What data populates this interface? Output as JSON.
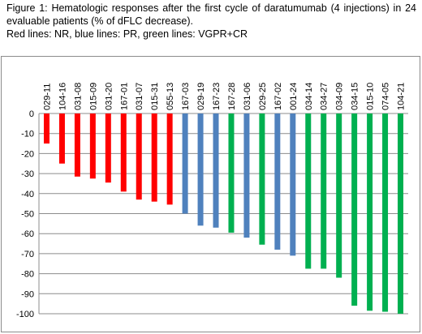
{
  "caption": {
    "line1": "Figure 1: Hematologic responses after the first cycle of daratumumab (4 injections) in 24 evaluable patients (% of dFLC decrease).",
    "line2": "Red lines: NR, blue lines: PR, green lines: VGPR+CR"
  },
  "colors": {
    "NR": "#ff0000",
    "PR": "#4f81bd",
    "VGPR+CR": "#00b050",
    "grid": "#8c8c8c"
  },
  "chart_data": {
    "type": "bar",
    "title": "",
    "xlabel": "",
    "ylabel": "",
    "ylim": [
      -100,
      0
    ],
    "yticks": [
      0,
      -10,
      -20,
      -30,
      -40,
      -50,
      -60,
      -70,
      -80,
      -90,
      -100
    ],
    "grid": "horizontal",
    "x_axis_position": "top",
    "categories": [
      "029-11",
      "104-16",
      "031-08",
      "015-09",
      "031-20",
      "167-01",
      "031-07",
      "015-31",
      "055-13",
      "167-03",
      "029-19",
      "167-23",
      "167-28",
      "031-06",
      "029-25",
      "167-02",
      "001-24",
      "034-14",
      "034-27",
      "034-09",
      "034-15",
      "015-10",
      "074-05",
      "104-21"
    ],
    "values": [
      -15,
      -25,
      -31.5,
      -32.5,
      -34.5,
      -39,
      -43,
      -44,
      -45.5,
      -50,
      -56,
      -57,
      -59.5,
      -62,
      -65.5,
      -68,
      -71,
      -77.5,
      -77.5,
      -82,
      -96,
      -98.5,
      -99,
      -100
    ],
    "groups": [
      "NR",
      "NR",
      "NR",
      "NR",
      "NR",
      "NR",
      "NR",
      "NR",
      "NR",
      "PR",
      "PR",
      "PR",
      "VGPR+CR",
      "PR",
      "VGPR+CR",
      "PR",
      "PR",
      "VGPR+CR",
      "VGPR+CR",
      "VGPR+CR",
      "VGPR+CR",
      "VGPR+CR",
      "VGPR+CR",
      "VGPR+CR"
    ]
  }
}
